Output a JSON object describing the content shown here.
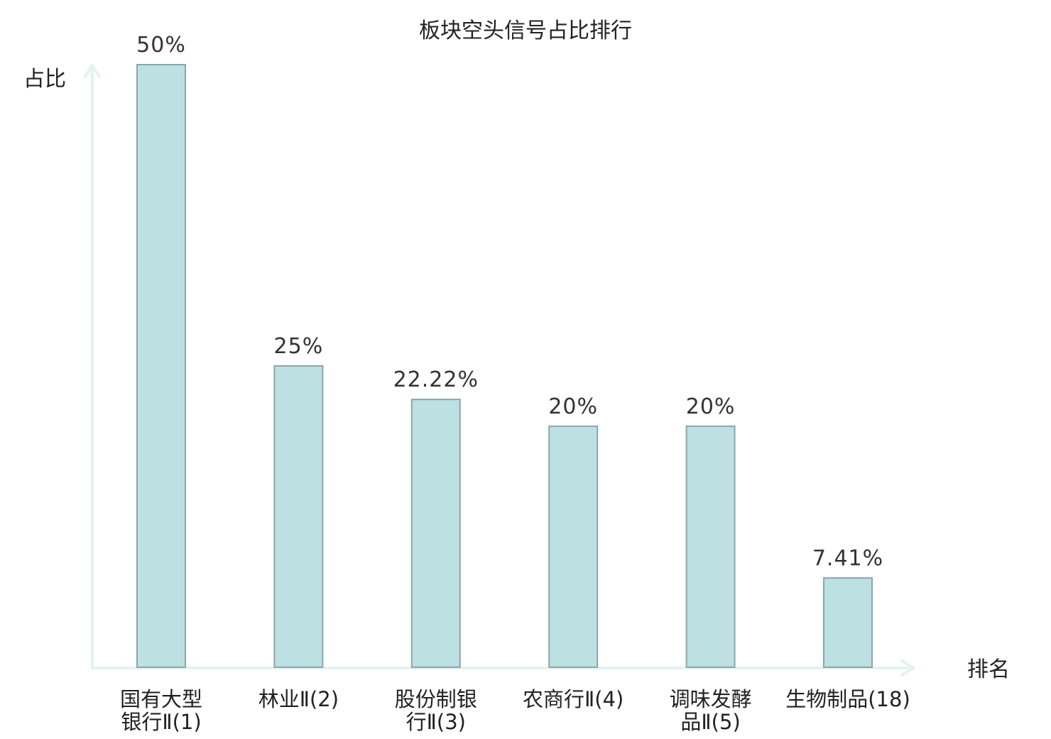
{
  "chart_data": {
    "type": "bar",
    "title": "板块空头信号占比排行",
    "ylabel": "占比",
    "xlabel": "排名",
    "ylim": [
      0,
      50
    ],
    "categories": [
      {
        "lines": [
          "国有大型",
          "银行Ⅱ(1)"
        ],
        "highlight": false
      },
      {
        "lines": [
          "林业Ⅱ(2)"
        ],
        "highlight": false
      },
      {
        "lines": [
          "股份制银",
          "行Ⅱ(3)"
        ],
        "highlight": false
      },
      {
        "lines": [
          "农商行Ⅱ(4)"
        ],
        "highlight": false
      },
      {
        "lines": [
          "调味发酵",
          "品Ⅱ(5)"
        ],
        "highlight": false
      },
      {
        "lines": [
          "生物制品(18)"
        ],
        "highlight": true
      }
    ],
    "values": [
      50,
      25,
      22.22,
      20,
      20,
      7.41
    ],
    "value_labels": [
      "50%",
      "25%",
      "22.22%",
      "20%",
      "20%",
      "7.41%"
    ],
    "colors": {
      "bar_fill": "#bde0e3",
      "bar_stroke": "#8aa6a9",
      "axis": "#e3f3ef",
      "highlight_text": "#e00000",
      "text": "#222222"
    }
  }
}
